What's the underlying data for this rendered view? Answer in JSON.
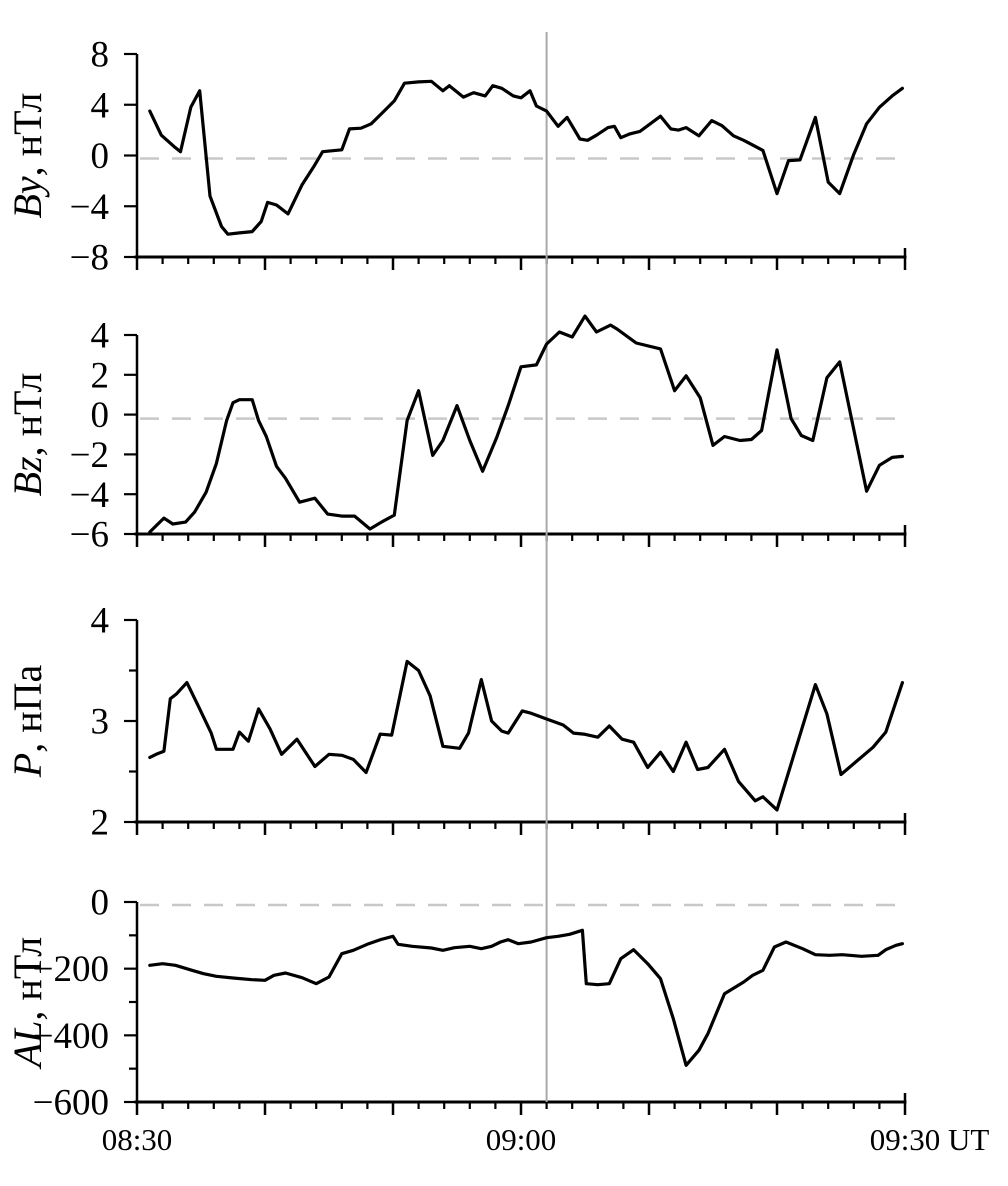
{
  "figure": {
    "description": "Four stacked time-series panels: solar wind By, Bz, dynamic pressure P and AL index versus universal time",
    "x_axis": {
      "t_min": 0,
      "t_max": 60,
      "minor_tick_step_min": 2,
      "major_tick_step_min": 10,
      "tick_labels": [
        {
          "t": 0,
          "text": "08:30"
        },
        {
          "t": 30,
          "text": "09:00"
        },
        {
          "t": 60,
          "text": "09:30"
        }
      ],
      "suffix": "UT"
    },
    "event_line_t": 32,
    "colors": {
      "curve": "#000000",
      "axis": "#000000",
      "text": "#000000",
      "zero_dash": "#c8c8c8",
      "event_line": "#a9a9a9",
      "background": "#ffffff"
    }
  },
  "chart_data": [
    {
      "type": "line",
      "panel": "By",
      "ylabel_variable": "By",
      "ylabel_unit": ", нТл",
      "ylim": [
        -8,
        8
      ],
      "yticks": [
        8,
        4,
        0,
        -4,
        -8
      ],
      "minor_yticks": [],
      "zero_dashed": true,
      "x_unit": "minutes after 08:30 UT",
      "points": [
        [
          1,
          3.5
        ],
        [
          1.9,
          1.6
        ],
        [
          2.9,
          0.7
        ],
        [
          3.4,
          0.3
        ],
        [
          4.2,
          3.8
        ],
        [
          4.9,
          5.1
        ],
        [
          5.7,
          -3.2
        ],
        [
          6.6,
          -5.6
        ],
        [
          7.1,
          -6.2
        ],
        [
          8,
          -6.1
        ],
        [
          9,
          -6
        ],
        [
          9.7,
          -5.2
        ],
        [
          10.2,
          -3.7
        ],
        [
          10.9,
          -3.9
        ],
        [
          11.8,
          -4.6
        ],
        [
          12.9,
          -2.3
        ],
        [
          13.8,
          -0.9
        ],
        [
          14.5,
          0.3
        ],
        [
          16,
          0.45
        ],
        [
          16.6,
          2.1
        ],
        [
          17.5,
          2.15
        ],
        [
          18.3,
          2.5
        ],
        [
          19.2,
          3.4
        ],
        [
          20.1,
          4.3
        ],
        [
          20.9,
          5.7
        ],
        [
          22,
          5.8
        ],
        [
          23,
          5.85
        ],
        [
          23.9,
          5.1
        ],
        [
          24.4,
          5.5
        ],
        [
          25.5,
          4.6
        ],
        [
          26.3,
          4.95
        ],
        [
          27.2,
          4.7
        ],
        [
          27.8,
          5.5
        ],
        [
          28.5,
          5.3
        ],
        [
          29.4,
          4.7
        ],
        [
          30,
          4.55
        ],
        [
          30.7,
          5.1
        ],
        [
          31.2,
          3.9
        ],
        [
          32,
          3.5
        ],
        [
          32.9,
          2.3
        ],
        [
          33.6,
          3
        ],
        [
          34.6,
          1.3
        ],
        [
          35.2,
          1.2
        ],
        [
          35.9,
          1.6
        ],
        [
          36.8,
          2.2
        ],
        [
          37.3,
          2.3
        ],
        [
          37.8,
          1.4
        ],
        [
          38.5,
          1.7
        ],
        [
          39.3,
          1.9
        ],
        [
          40.9,
          3.1
        ],
        [
          41.7,
          2.1
        ],
        [
          42.3,
          2
        ],
        [
          42.9,
          2.2
        ],
        [
          43.9,
          1.55
        ],
        [
          44.9,
          2.75
        ],
        [
          45.7,
          2.35
        ],
        [
          46.6,
          1.55
        ],
        [
          47.4,
          1.2
        ],
        [
          48.9,
          0.4
        ],
        [
          50,
          -3
        ],
        [
          50.9,
          -0.4
        ],
        [
          51.8,
          -0.35
        ],
        [
          53,
          3
        ],
        [
          54,
          -2.1
        ],
        [
          54.9,
          -3
        ],
        [
          56,
          0.1
        ],
        [
          57,
          2.5
        ],
        [
          58,
          3.8
        ],
        [
          59,
          4.7
        ],
        [
          59.8,
          5.3
        ]
      ]
    },
    {
      "type": "line",
      "panel": "Bz",
      "ylabel_variable": "Bz",
      "ylabel_unit": ", нТл",
      "ylim": [
        -6,
        4
      ],
      "yticks": [
        4,
        2,
        0,
        -2,
        -4,
        -6
      ],
      "minor_yticks": [],
      "zero_dashed": true,
      "x_unit": "minutes after 08:30 UT",
      "points": [
        [
          1,
          -5.9
        ],
        [
          2.1,
          -5.2
        ],
        [
          2.8,
          -5.5
        ],
        [
          3.8,
          -5.4
        ],
        [
          4.5,
          -4.9
        ],
        [
          5.4,
          -3.9
        ],
        [
          6.2,
          -2.45
        ],
        [
          7,
          -0.3
        ],
        [
          7.5,
          0.6
        ],
        [
          8,
          0.75
        ],
        [
          9,
          0.75
        ],
        [
          9.5,
          -0.3
        ],
        [
          10.1,
          -1.1
        ],
        [
          10.9,
          -2.6
        ],
        [
          11.6,
          -3.2
        ],
        [
          12.7,
          -4.4
        ],
        [
          13.9,
          -4.2
        ],
        [
          14.9,
          -5
        ],
        [
          16,
          -5.1
        ],
        [
          17,
          -5.1
        ],
        [
          18.2,
          -5.75
        ],
        [
          19.1,
          -5.4
        ],
        [
          20.1,
          -5.05
        ],
        [
          21.1,
          -0.3
        ],
        [
          22,
          1.2
        ],
        [
          23.1,
          -2.05
        ],
        [
          23.9,
          -1.3
        ],
        [
          25,
          0.45
        ],
        [
          26,
          -1.3
        ],
        [
          27,
          -2.85
        ],
        [
          28.1,
          -1.15
        ],
        [
          29,
          0.45
        ],
        [
          30,
          2.4
        ],
        [
          31.2,
          2.5
        ],
        [
          32,
          3.55
        ],
        [
          33,
          4.15
        ],
        [
          34,
          3.9
        ],
        [
          35,
          4.95
        ],
        [
          35.9,
          4.15
        ],
        [
          37,
          4.5
        ],
        [
          37.5,
          4.3
        ],
        [
          39,
          3.6
        ],
        [
          40.9,
          3.3
        ],
        [
          42,
          1.2
        ],
        [
          42.9,
          1.95
        ],
        [
          44,
          0.85
        ],
        [
          45,
          -1.55
        ],
        [
          45.9,
          -1.1
        ],
        [
          47.1,
          -1.3
        ],
        [
          48,
          -1.25
        ],
        [
          48.8,
          -0.8
        ],
        [
          50,
          3.25
        ],
        [
          51.1,
          -0.2
        ],
        [
          51.9,
          -1.05
        ],
        [
          52.8,
          -1.3
        ],
        [
          53.9,
          1.85
        ],
        [
          54.9,
          2.65
        ],
        [
          57,
          -3.85
        ],
        [
          58,
          -2.55
        ],
        [
          59,
          -2.15
        ],
        [
          59.8,
          -2.1
        ]
      ]
    },
    {
      "type": "line",
      "panel": "P",
      "ylabel_variable": "P",
      "ylabel_unit": ", нПа",
      "ylim": [
        2,
        4
      ],
      "yticks": [
        4,
        3,
        2
      ],
      "minor_yticks": [
        3.5,
        2.5
      ],
      "zero_dashed": false,
      "x_unit": "minutes after 08:30 UT",
      "points": [
        [
          1,
          2.64
        ],
        [
          1.5,
          2.67
        ],
        [
          2.1,
          2.7
        ],
        [
          2.6,
          3.22
        ],
        [
          3.1,
          3.27
        ],
        [
          3.9,
          3.38
        ],
        [
          4.9,
          3.12
        ],
        [
          5.8,
          2.88
        ],
        [
          6.2,
          2.72
        ],
        [
          7.5,
          2.72
        ],
        [
          8,
          2.89
        ],
        [
          8.7,
          2.8
        ],
        [
          9.5,
          3.12
        ],
        [
          10.4,
          2.92
        ],
        [
          11.3,
          2.67
        ],
        [
          12.5,
          2.82
        ],
        [
          13.9,
          2.55
        ],
        [
          15,
          2.67
        ],
        [
          16,
          2.66
        ],
        [
          16.9,
          2.62
        ],
        [
          17.9,
          2.49
        ],
        [
          19,
          2.87
        ],
        [
          19.9,
          2.86
        ],
        [
          21.1,
          3.59
        ],
        [
          22,
          3.5
        ],
        [
          22.9,
          3.25
        ],
        [
          23.9,
          2.75
        ],
        [
          25.2,
          2.73
        ],
        [
          25.9,
          2.88
        ],
        [
          26.9,
          3.41
        ],
        [
          27.7,
          3
        ],
        [
          28.5,
          2.9
        ],
        [
          29,
          2.88
        ],
        [
          30.1,
          3.1
        ],
        [
          30.7,
          3.08
        ],
        [
          32,
          3.02
        ],
        [
          33.3,
          2.96
        ],
        [
          34.1,
          2.88
        ],
        [
          34.9,
          2.87
        ],
        [
          36,
          2.84
        ],
        [
          36.9,
          2.95
        ],
        [
          37.9,
          2.82
        ],
        [
          38.8,
          2.79
        ],
        [
          39.9,
          2.54
        ],
        [
          40.9,
          2.69
        ],
        [
          41.9,
          2.5
        ],
        [
          42.9,
          2.79
        ],
        [
          43.8,
          2.52
        ],
        [
          44.6,
          2.54
        ],
        [
          45.9,
          2.72
        ],
        [
          47,
          2.4
        ],
        [
          48.3,
          2.21
        ],
        [
          48.9,
          2.25
        ],
        [
          50,
          2.12
        ],
        [
          53,
          3.36
        ],
        [
          53.9,
          3.07
        ],
        [
          55,
          2.47
        ],
        [
          56.2,
          2.6
        ],
        [
          57.5,
          2.74
        ],
        [
          58.5,
          2.89
        ],
        [
          59.8,
          3.38
        ]
      ]
    },
    {
      "type": "line",
      "panel": "AL",
      "ylabel_variable": "AL",
      "ylabel_unit": ", нТл",
      "ylim": [
        -600,
        0
      ],
      "yticks": [
        0,
        -200,
        -400,
        -600
      ],
      "minor_yticks": [
        -100,
        -300,
        -500
      ],
      "zero_dashed": true,
      "x_unit": "minutes after 08:30 UT",
      "points": [
        [
          1,
          -190
        ],
        [
          2,
          -185
        ],
        [
          3,
          -190
        ],
        [
          4.3,
          -205
        ],
        [
          5.2,
          -215
        ],
        [
          6.2,
          -223
        ],
        [
          7.5,
          -228
        ],
        [
          9,
          -233
        ],
        [
          10,
          -235
        ],
        [
          10.7,
          -220
        ],
        [
          11.6,
          -213
        ],
        [
          12.9,
          -227
        ],
        [
          14,
          -245
        ],
        [
          15,
          -225
        ],
        [
          16,
          -155
        ],
        [
          16.9,
          -145
        ],
        [
          18.1,
          -125
        ],
        [
          19,
          -113
        ],
        [
          20,
          -103
        ],
        [
          20.4,
          -127
        ],
        [
          21.5,
          -133
        ],
        [
          23,
          -138
        ],
        [
          23.9,
          -145
        ],
        [
          24.8,
          -137
        ],
        [
          26,
          -133
        ],
        [
          26.9,
          -140
        ],
        [
          27.7,
          -133
        ],
        [
          28.4,
          -120
        ],
        [
          29,
          -113
        ],
        [
          29.8,
          -125
        ],
        [
          30.8,
          -120
        ],
        [
          32,
          -107
        ],
        [
          32.9,
          -103
        ],
        [
          33.8,
          -97
        ],
        [
          34.8,
          -85
        ],
        [
          35.1,
          -245
        ],
        [
          36,
          -248
        ],
        [
          36.9,
          -245
        ],
        [
          37.8,
          -170
        ],
        [
          38.8,
          -143
        ],
        [
          39.9,
          -185
        ],
        [
          40.9,
          -230
        ],
        [
          41.9,
          -350
        ],
        [
          42.9,
          -490
        ],
        [
          43.9,
          -445
        ],
        [
          44.6,
          -395
        ],
        [
          45.9,
          -275
        ],
        [
          47.4,
          -240
        ],
        [
          48.1,
          -220
        ],
        [
          48.9,
          -205
        ],
        [
          49.8,
          -135
        ],
        [
          50.7,
          -120
        ],
        [
          52,
          -140
        ],
        [
          53,
          -158
        ],
        [
          54.1,
          -160
        ],
        [
          55.1,
          -158
        ],
        [
          56.6,
          -163
        ],
        [
          57.9,
          -160
        ],
        [
          58.5,
          -143
        ],
        [
          59.3,
          -130
        ],
        [
          59.8,
          -125
        ]
      ]
    }
  ]
}
